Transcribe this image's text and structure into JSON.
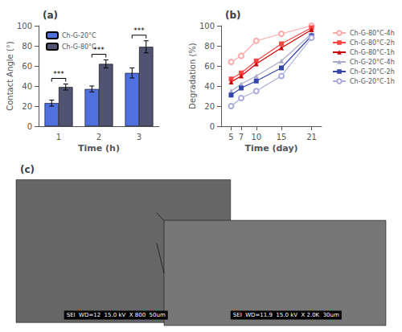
{
  "chart_data": [
    {
      "type": "bar",
      "title": "(a)",
      "xlabel": "Time (h)",
      "ylabel": "Contact Angle (°)",
      "categories": [
        "1",
        "2",
        "3"
      ],
      "series": [
        {
          "name": "Ch-G-20°C",
          "values": [
            23,
            37,
            53
          ],
          "errors": [
            3,
            3,
            5
          ]
        },
        {
          "name": "Ch-G-80°C",
          "values": [
            39,
            62,
            79
          ],
          "errors": [
            3,
            4,
            6
          ]
        }
      ],
      "ylim": [
        0,
        100
      ],
      "yticks": [
        0,
        20,
        40,
        60,
        80,
        100
      ],
      "grid": false,
      "legend": "upper left",
      "annotations": [
        {
          "text": "***",
          "category": "1"
        },
        {
          "text": "***",
          "category": "2"
        },
        {
          "text": "***",
          "category": "3"
        }
      ]
    },
    {
      "type": "line",
      "title": "(b)",
      "xlabel": "Time (day)",
      "ylabel": "Degradation (%)",
      "x": [
        5,
        7,
        10,
        15,
        21
      ],
      "xlim": [
        3,
        23
      ],
      "xticks": [
        5,
        7,
        10,
        15,
        21
      ],
      "ylim": [
        0,
        100
      ],
      "yticks": [
        0,
        20,
        40,
        60,
        80,
        100
      ],
      "grid": false,
      "legend": "right",
      "series": [
        {
          "name": "Ch-G-80°C-4h",
          "color": "#ffaaaa",
          "marker": "open circle",
          "values": [
            64,
            70,
            85,
            92,
            100
          ]
        },
        {
          "name": "Ch-G-80°C-2h",
          "color": "#ff4444",
          "marker": "square",
          "values": [
            47,
            53,
            65,
            82,
            98
          ]
        },
        {
          "name": "Ch-G-80°C-1h",
          "color": "#cc0000",
          "marker": "triangle",
          "values": [
            44,
            50,
            62,
            78,
            96
          ]
        },
        {
          "name": "Ch-G-20°C-4h",
          "color": "#aaaacc",
          "marker": "triangle",
          "values": [
            35,
            42,
            50,
            65,
            92
          ]
        },
        {
          "name": "Ch-G-20°C-2h",
          "color": "#3344aa",
          "marker": "square",
          "values": [
            31,
            38,
            45,
            58,
            90
          ]
        },
        {
          "name": "Ch-G-20°C-1h",
          "color": "#aaaadd",
          "marker": "open circle",
          "values": [
            20,
            28,
            35,
            50,
            88
          ]
        }
      ]
    },
    {
      "type": "image",
      "title": "(c)",
      "annotations": [
        "SEI  WD=12  15.0 kV  X 800  50um",
        "SEI  WD=11.9  15.0 kV  X 2.0K  30um"
      ]
    }
  ]
}
